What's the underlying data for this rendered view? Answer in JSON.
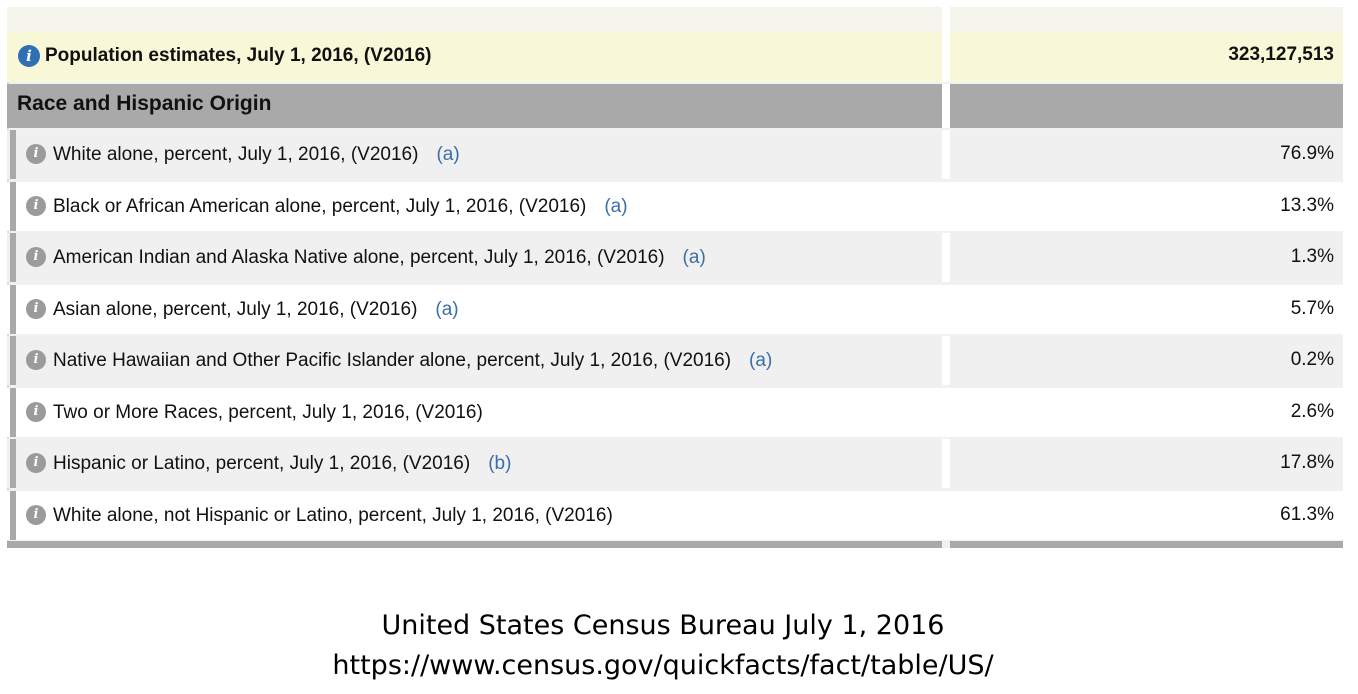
{
  "population": {
    "info_icon": "info-icon",
    "label": "Population estimates, July 1, 2016, (V2016)",
    "value": "323,127,513"
  },
  "section": {
    "title": "Race and Hispanic Origin"
  },
  "rows": [
    {
      "label": "White alone, percent, July 1, 2016, (V2016)",
      "footnote": "(a)",
      "value": "76.9%"
    },
    {
      "label": "Black or African American alone, percent, July 1, 2016, (V2016)",
      "footnote": "(a)",
      "value": "13.3%"
    },
    {
      "label": "American Indian and Alaska Native alone, percent, July 1, 2016, (V2016)",
      "footnote": "(a)",
      "value": "1.3%"
    },
    {
      "label": "Asian alone, percent, July 1, 2016, (V2016)",
      "footnote": "(a)",
      "value": "5.7%"
    },
    {
      "label": "Native Hawaiian and Other Pacific Islander alone, percent, July 1, 2016, (V2016)",
      "footnote": "(a)",
      "value": "0.2%"
    },
    {
      "label": "Two or More Races, percent, July 1, 2016, (V2016)",
      "footnote": "",
      "value": "2.6%"
    },
    {
      "label": "Hispanic or Latino, percent, July 1, 2016, (V2016)",
      "footnote": "(b)",
      "value": "17.8%"
    },
    {
      "label": "White alone, not Hispanic or Latino, percent, July 1, 2016, (V2016)",
      "footnote": "",
      "value": "61.3%"
    }
  ],
  "caption": {
    "line1": "United States Census Bureau July 1, 2016",
    "line2": "https://www.census.gov/quickfacts/fact/table/US/"
  },
  "colors": {
    "info_icon_blue": "#2f6fb5",
    "footnote_link": "#3b6da8",
    "highlight_row": "#f8f8d8",
    "section_header": "#a9a9a9"
  }
}
